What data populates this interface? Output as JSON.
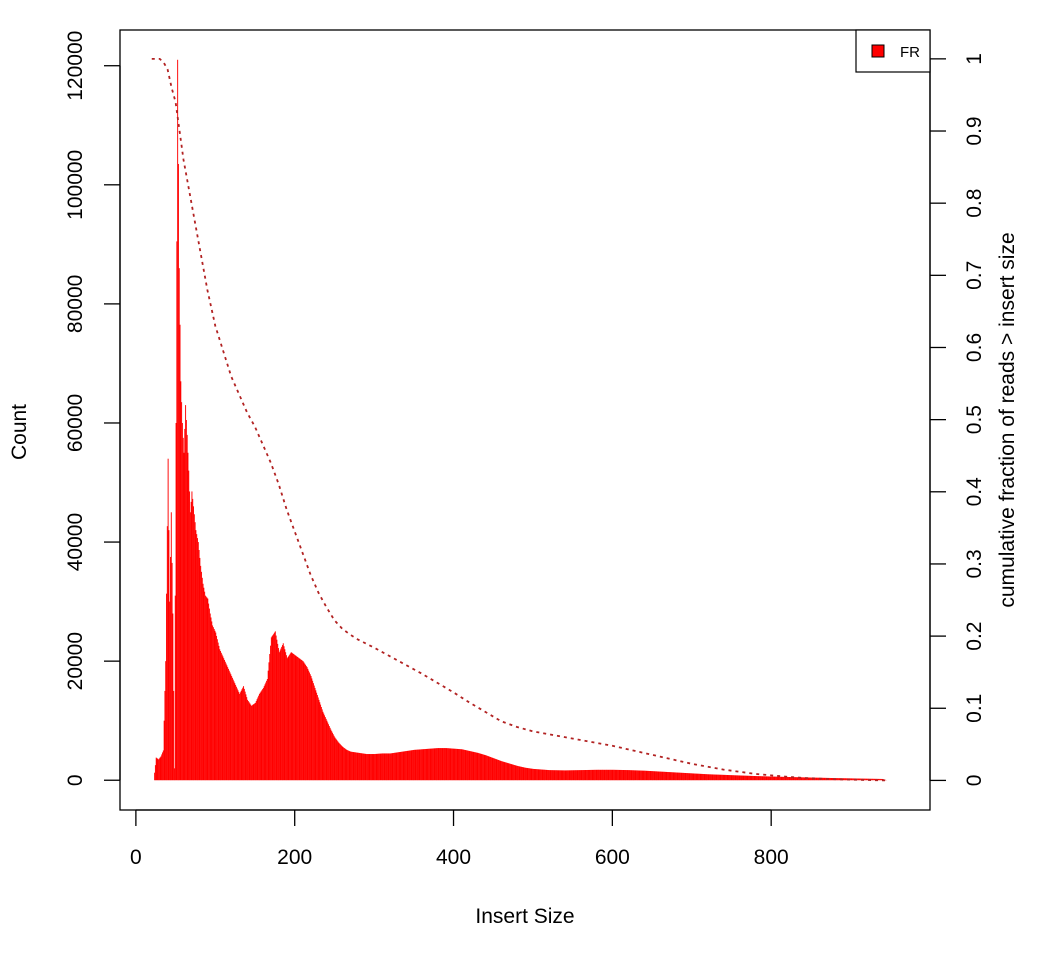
{
  "chart_data": {
    "type": "bar",
    "xlabel": "Insert Size",
    "ylabel": "Count",
    "y2label": "cumulative fraction of reads > insert size",
    "xlim": [
      -20,
      1000
    ],
    "ylim": [
      -5000,
      126000
    ],
    "y2lim": [
      -0.041,
      1.04
    ],
    "x_ticks": [
      0,
      200,
      400,
      600,
      800
    ],
    "y_ticks": [
      0,
      20000,
      40000,
      60000,
      80000,
      100000,
      120000
    ],
    "y2_ticks": [
      0,
      0.1,
      0.2,
      0.3,
      0.4,
      0.5,
      0.6,
      0.7,
      0.8,
      0.9,
      1
    ],
    "grid": false,
    "legend_position": "top-right",
    "colors": {
      "histogram": "#ff0000",
      "cumulative": "#b22222"
    },
    "series": [
      {
        "name": "FR",
        "kind": "histogram",
        "points": [
          [
            22,
            0
          ],
          [
            25,
            3800
          ],
          [
            28,
            3500
          ],
          [
            31,
            4000
          ],
          [
            34,
            5000
          ],
          [
            37,
            20000
          ],
          [
            40,
            54000
          ],
          [
            42,
            30000
          ],
          [
            44,
            45000
          ],
          [
            46,
            28000
          ],
          [
            48,
            2000
          ],
          [
            50,
            60000
          ],
          [
            52,
            121000
          ],
          [
            54,
            86000
          ],
          [
            56,
            67000
          ],
          [
            58,
            60000
          ],
          [
            60,
            55000
          ],
          [
            62,
            63000
          ],
          [
            64,
            58000
          ],
          [
            66,
            52000
          ],
          [
            68,
            45000
          ],
          [
            70,
            48500
          ],
          [
            72,
            46000
          ],
          [
            75,
            42000
          ],
          [
            78,
            40000
          ],
          [
            81,
            36000
          ],
          [
            84,
            33000
          ],
          [
            87,
            31000
          ],
          [
            90,
            30500
          ],
          [
            93,
            28000
          ],
          [
            96,
            26000
          ],
          [
            100,
            24800
          ],
          [
            105,
            22000
          ],
          [
            110,
            20500
          ],
          [
            115,
            19000
          ],
          [
            120,
            17500
          ],
          [
            125,
            16000
          ],
          [
            130,
            14500
          ],
          [
            135,
            15800
          ],
          [
            140,
            13500
          ],
          [
            145,
            12500
          ],
          [
            150,
            13000
          ],
          [
            155,
            14500
          ],
          [
            160,
            15500
          ],
          [
            165,
            17000
          ],
          [
            170,
            24000
          ],
          [
            175,
            25000
          ],
          [
            180,
            21500
          ],
          [
            185,
            23000
          ],
          [
            190,
            20500
          ],
          [
            195,
            21500
          ],
          [
            200,
            21000
          ],
          [
            205,
            20500
          ],
          [
            210,
            20000
          ],
          [
            215,
            19000
          ],
          [
            220,
            17500
          ],
          [
            225,
            15500
          ],
          [
            230,
            13500
          ],
          [
            235,
            11500
          ],
          [
            240,
            10000
          ],
          [
            245,
            8500
          ],
          [
            250,
            7200
          ],
          [
            255,
            6300
          ],
          [
            260,
            5600
          ],
          [
            265,
            5100
          ],
          [
            270,
            4800
          ],
          [
            280,
            4600
          ],
          [
            290,
            4400
          ],
          [
            300,
            4400
          ],
          [
            310,
            4500
          ],
          [
            320,
            4500
          ],
          [
            330,
            4700
          ],
          [
            340,
            4900
          ],
          [
            350,
            5100
          ],
          [
            360,
            5200
          ],
          [
            370,
            5300
          ],
          [
            380,
            5400
          ],
          [
            390,
            5400
          ],
          [
            400,
            5300
          ],
          [
            410,
            5200
          ],
          [
            420,
            4900
          ],
          [
            430,
            4600
          ],
          [
            440,
            4200
          ],
          [
            450,
            3700
          ],
          [
            460,
            3200
          ],
          [
            470,
            2800
          ],
          [
            480,
            2400
          ],
          [
            490,
            2100
          ],
          [
            500,
            1900
          ],
          [
            510,
            1800
          ],
          [
            520,
            1700
          ],
          [
            540,
            1650
          ],
          [
            560,
            1700
          ],
          [
            580,
            1750
          ],
          [
            600,
            1750
          ],
          [
            620,
            1700
          ],
          [
            640,
            1600
          ],
          [
            660,
            1450
          ],
          [
            680,
            1300
          ],
          [
            700,
            1150
          ],
          [
            720,
            1000
          ],
          [
            740,
            900
          ],
          [
            760,
            800
          ],
          [
            780,
            700
          ],
          [
            800,
            620
          ],
          [
            820,
            550
          ],
          [
            840,
            480
          ],
          [
            860,
            420
          ],
          [
            880,
            360
          ],
          [
            900,
            310
          ],
          [
            920,
            260
          ],
          [
            940,
            210
          ],
          [
            945,
            0
          ]
        ]
      },
      {
        "name": "",
        "kind": "cumulative",
        "points": [
          [
            20,
            1.0
          ],
          [
            30,
            1.0
          ],
          [
            35,
            0.995
          ],
          [
            40,
            0.985
          ],
          [
            45,
            0.96
          ],
          [
            50,
            0.94
          ],
          [
            55,
            0.9
          ],
          [
            60,
            0.86
          ],
          [
            70,
            0.8
          ],
          [
            80,
            0.74
          ],
          [
            90,
            0.68
          ],
          [
            100,
            0.63
          ],
          [
            110,
            0.595
          ],
          [
            120,
            0.56
          ],
          [
            130,
            0.535
          ],
          [
            140,
            0.51
          ],
          [
            150,
            0.49
          ],
          [
            160,
            0.465
          ],
          [
            170,
            0.44
          ],
          [
            180,
            0.41
          ],
          [
            190,
            0.375
          ],
          [
            200,
            0.345
          ],
          [
            210,
            0.315
          ],
          [
            220,
            0.285
          ],
          [
            230,
            0.26
          ],
          [
            240,
            0.24
          ],
          [
            250,
            0.222
          ],
          [
            260,
            0.21
          ],
          [
            270,
            0.202
          ],
          [
            280,
            0.195
          ],
          [
            300,
            0.184
          ],
          [
            320,
            0.172
          ],
          [
            340,
            0.16
          ],
          [
            360,
            0.148
          ],
          [
            380,
            0.135
          ],
          [
            400,
            0.122
          ],
          [
            420,
            0.108
          ],
          [
            440,
            0.095
          ],
          [
            460,
            0.082
          ],
          [
            480,
            0.074
          ],
          [
            500,
            0.068
          ],
          [
            520,
            0.064
          ],
          [
            540,
            0.06
          ],
          [
            560,
            0.056
          ],
          [
            580,
            0.052
          ],
          [
            600,
            0.048
          ],
          [
            620,
            0.043
          ],
          [
            640,
            0.038
          ],
          [
            660,
            0.033
          ],
          [
            680,
            0.028
          ],
          [
            700,
            0.023
          ],
          [
            720,
            0.019
          ],
          [
            740,
            0.015
          ],
          [
            760,
            0.012
          ],
          [
            780,
            0.009
          ],
          [
            800,
            0.007
          ],
          [
            820,
            0.005
          ],
          [
            840,
            0.0035
          ],
          [
            860,
            0.0025
          ],
          [
            880,
            0.0017
          ],
          [
            900,
            0.0011
          ],
          [
            920,
            0.0006
          ],
          [
            945,
            0.0
          ]
        ]
      }
    ]
  }
}
